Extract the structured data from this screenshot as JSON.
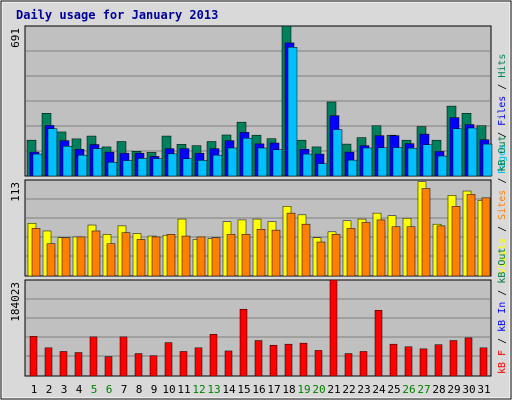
{
  "chart_data": {
    "type": "bar",
    "title": "Daily usage for January 2013",
    "categories": [
      "1",
      "2",
      "3",
      "4",
      "5",
      "6",
      "7",
      "8",
      "9",
      "10",
      "11",
      "12",
      "13",
      "14",
      "15",
      "16",
      "17",
      "18",
      "19",
      "20",
      "21",
      "22",
      "23",
      "24",
      "25",
      "26",
      "27",
      "28",
      "29",
      "30",
      "31"
    ],
    "weekend_days": [
      "5",
      "6",
      "12",
      "13",
      "19",
      "20",
      "26",
      "27"
    ],
    "panels": [
      {
        "id": "top",
        "ymax_label": "691",
        "ylim": [
          0,
          691
        ],
        "axis_right": [
          "Pages",
          "Files",
          "Hits"
        ],
        "series": [
          {
            "name": "Hits",
            "color": "#00805c",
            "values": [
              165,
              289,
              203,
              171,
              184,
              134,
              159,
              114,
              109,
              184,
              146,
              140,
              159,
              189,
              248,
              188,
              172,
              691,
              165,
              134,
              341,
              147,
              177,
              232,
              188,
              165,
              227,
              165,
              322,
              289,
              232
            ]
          },
          {
            "name": "Files",
            "color": "#0000ff",
            "values": [
              110,
              233,
              163,
              123,
              145,
              110,
              105,
              105,
              90,
              126,
              126,
              105,
              126,
              163,
              201,
              148,
              152,
              613,
              123,
              101,
              278,
              110,
              140,
              186,
              186,
              149,
              193,
              113,
              269,
              237,
              167
            ]
          },
          {
            "name": "Pages",
            "color": "#00bfff",
            "values": [
              101,
              218,
              137,
              96,
              126,
              63,
              71,
              81,
              80,
              102,
              80,
              72,
              96,
              129,
              174,
              129,
              121,
              593,
              101,
              57,
              214,
              73,
              129,
              130,
              131,
              128,
              144,
              92,
              218,
              221,
              147
            ]
          }
        ]
      },
      {
        "id": "middle",
        "ymax_label": "113",
        "ylim": [
          0,
          113
        ],
        "axis_right": [
          "Visits",
          "Sites",
          "kB Out"
        ],
        "series": [
          {
            "name": "Visits",
            "color": "#ffff00",
            "values": [
              62,
              53,
              45,
              46,
              60,
              49,
              59,
              50,
              47,
              48,
              67,
              43,
              44,
              64,
              66,
              67,
              64,
              82,
              72,
              45,
              52,
              65,
              67,
              74,
              71,
              68,
              111,
              61,
              95,
              100,
              89
            ]
          },
          {
            "name": "Sites",
            "color": "#ff8000",
            "values": [
              56,
              38,
              45,
              46,
              53,
              38,
              51,
              43,
              46,
              49,
              47,
              46,
              45,
              49,
              49,
              55,
              54,
              74,
              61,
              40,
              49,
              56,
              63,
              66,
              58,
              58,
              103,
              59,
              82,
              96,
              92
            ]
          }
        ]
      },
      {
        "id": "bottom",
        "ymax_label": "184023",
        "ylim": [
          0,
          184023
        ],
        "axis_right": [
          "kB F",
          "kB In",
          "kB Out"
        ],
        "series": [
          {
            "name": "kB F",
            "color": "#ff0000",
            "values": [
              76001,
              54005,
              47012,
              44989,
              75002,
              37005,
              75003,
              43009,
              39008,
              64001,
              47002,
              54001,
              80002,
              48001,
              128004,
              68002,
              59004,
              61003,
              63002,
              49009,
              184023,
              43001,
              47002,
              126004,
              61002,
              56001,
              52004,
              60002,
              68003,
              73003,
              54001
            ]
          }
        ]
      }
    ]
  }
}
